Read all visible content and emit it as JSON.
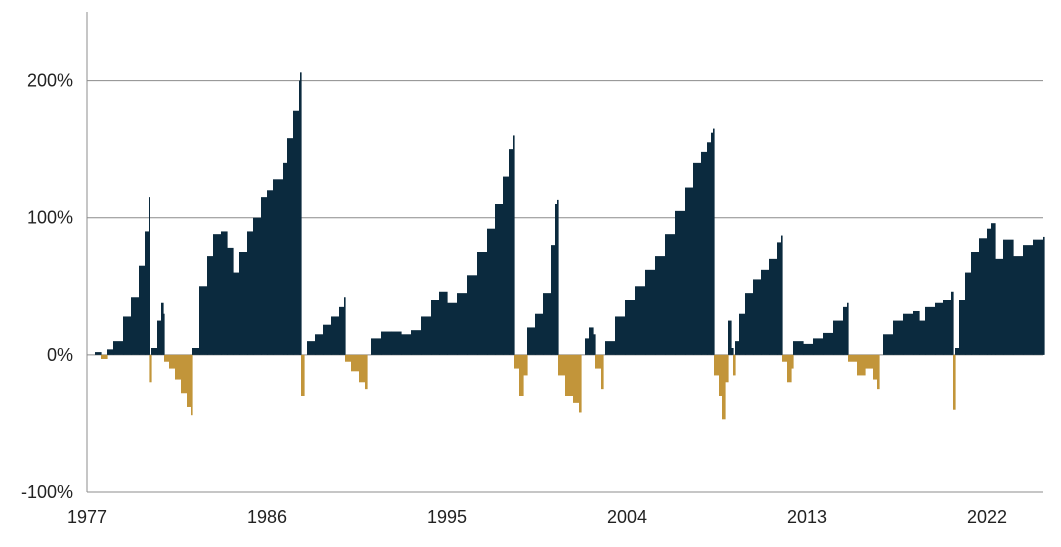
{
  "chart_data": {
    "type": "area",
    "title": "",
    "xlabel": "",
    "ylabel": "",
    "xlim": [
      1977,
      2024.8
    ],
    "ylim": [
      -100,
      250
    ],
    "y_ticks": [
      {
        "value": 200,
        "label": "200%"
      },
      {
        "value": 100,
        "label": "100%"
      },
      {
        "value": 0,
        "label": "0%"
      },
      {
        "value": -100,
        "label": "-100%"
      }
    ],
    "x_ticks": [
      {
        "value": 1977,
        "label": "1977"
      },
      {
        "value": 1986,
        "label": "1986"
      },
      {
        "value": 1995,
        "label": "1995"
      },
      {
        "value": 2004,
        "label": "2004"
      },
      {
        "value": 2013,
        "label": "2013"
      },
      {
        "value": 2022,
        "label": "2022"
      }
    ],
    "grid": true,
    "colors": {
      "positive": "#0b2a3e",
      "negative": "#c2953a",
      "grid": "#8c8c8c"
    },
    "series": [
      {
        "points": [
          [
            1977.0,
            0
          ],
          [
            1977.4,
            2
          ],
          [
            1977.7,
            -3
          ],
          [
            1978.0,
            4
          ],
          [
            1978.3,
            10
          ],
          [
            1978.8,
            28
          ],
          [
            1979.2,
            42
          ],
          [
            1979.6,
            65
          ],
          [
            1979.9,
            90
          ],
          [
            1980.1,
            115
          ],
          [
            1980.12,
            -20
          ],
          [
            1980.2,
            5
          ],
          [
            1980.5,
            25
          ],
          [
            1980.7,
            38
          ],
          [
            1980.8,
            30
          ],
          [
            1980.85,
            -5
          ],
          [
            1981.1,
            -10
          ],
          [
            1981.4,
            -18
          ],
          [
            1981.7,
            -28
          ],
          [
            1982.0,
            -38
          ],
          [
            1982.2,
            -44
          ],
          [
            1982.25,
            5
          ],
          [
            1982.6,
            50
          ],
          [
            1983.0,
            72
          ],
          [
            1983.3,
            88
          ],
          [
            1983.7,
            90
          ],
          [
            1984.0,
            78
          ],
          [
            1984.3,
            60
          ],
          [
            1984.6,
            75
          ],
          [
            1985.0,
            90
          ],
          [
            1985.3,
            100
          ],
          [
            1985.7,
            115
          ],
          [
            1986.0,
            120
          ],
          [
            1986.3,
            128
          ],
          [
            1986.8,
            140
          ],
          [
            1987.0,
            158
          ],
          [
            1987.3,
            178
          ],
          [
            1987.6,
            200
          ],
          [
            1987.65,
            206
          ],
          [
            1987.7,
            -30
          ],
          [
            1987.85,
            0
          ],
          [
            1988.0,
            10
          ],
          [
            1988.4,
            15
          ],
          [
            1988.8,
            22
          ],
          [
            1989.2,
            28
          ],
          [
            1989.6,
            35
          ],
          [
            1989.85,
            42
          ],
          [
            1989.9,
            -5
          ],
          [
            1990.2,
            -12
          ],
          [
            1990.6,
            -20
          ],
          [
            1990.9,
            -25
          ],
          [
            1991.0,
            0
          ],
          [
            1991.2,
            12
          ],
          [
            1991.7,
            17
          ],
          [
            1992.2,
            17
          ],
          [
            1992.7,
            15
          ],
          [
            1993.2,
            18
          ],
          [
            1993.7,
            28
          ],
          [
            1994.2,
            40
          ],
          [
            1994.6,
            46
          ],
          [
            1995.0,
            38
          ],
          [
            1995.5,
            45
          ],
          [
            1996.0,
            58
          ],
          [
            1996.5,
            75
          ],
          [
            1997.0,
            92
          ],
          [
            1997.4,
            110
          ],
          [
            1997.8,
            130
          ],
          [
            1998.1,
            150
          ],
          [
            1998.3,
            160
          ],
          [
            1998.35,
            -10
          ],
          [
            1998.6,
            -30
          ],
          [
            1998.8,
            -15
          ],
          [
            1999.0,
            20
          ],
          [
            1999.4,
            30
          ],
          [
            1999.8,
            45
          ],
          [
            2000.2,
            80
          ],
          [
            2000.4,
            110
          ],
          [
            2000.5,
            113
          ],
          [
            2000.55,
            -15
          ],
          [
            2000.9,
            -30
          ],
          [
            2001.3,
            -35
          ],
          [
            2001.6,
            -42
          ],
          [
            2001.7,
            0
          ],
          [
            2001.9,
            12
          ],
          [
            2002.1,
            20
          ],
          [
            2002.3,
            15
          ],
          [
            2002.4,
            -10
          ],
          [
            2002.7,
            -25
          ],
          [
            2002.8,
            0
          ],
          [
            2002.9,
            10
          ],
          [
            2003.4,
            28
          ],
          [
            2003.9,
            40
          ],
          [
            2004.4,
            50
          ],
          [
            2004.9,
            62
          ],
          [
            2005.4,
            72
          ],
          [
            2005.9,
            88
          ],
          [
            2006.4,
            105
          ],
          [
            2006.9,
            122
          ],
          [
            2007.3,
            140
          ],
          [
            2007.7,
            148
          ],
          [
            2008.0,
            155
          ],
          [
            2008.2,
            162
          ],
          [
            2008.3,
            165
          ],
          [
            2008.35,
            -15
          ],
          [
            2008.6,
            -30
          ],
          [
            2008.75,
            -47
          ],
          [
            2008.9,
            -20
          ],
          [
            2009.05,
            25
          ],
          [
            2009.2,
            5
          ],
          [
            2009.3,
            -15
          ],
          [
            2009.4,
            10
          ],
          [
            2009.6,
            30
          ],
          [
            2009.9,
            45
          ],
          [
            2010.3,
            55
          ],
          [
            2010.7,
            62
          ],
          [
            2011.1,
            70
          ],
          [
            2011.5,
            82
          ],
          [
            2011.7,
            87
          ],
          [
            2011.75,
            -5
          ],
          [
            2012.0,
            -20
          ],
          [
            2012.2,
            -10
          ],
          [
            2012.3,
            10
          ],
          [
            2012.8,
            8
          ],
          [
            2013.3,
            12
          ],
          [
            2013.8,
            16
          ],
          [
            2014.3,
            25
          ],
          [
            2014.8,
            35
          ],
          [
            2015.0,
            38
          ],
          [
            2015.05,
            -5
          ],
          [
            2015.5,
            -15
          ],
          [
            2015.9,
            -10
          ],
          [
            2016.3,
            -18
          ],
          [
            2016.5,
            -25
          ],
          [
            2016.6,
            0
          ],
          [
            2016.8,
            15
          ],
          [
            2017.3,
            25
          ],
          [
            2017.8,
            30
          ],
          [
            2018.3,
            32
          ],
          [
            2018.6,
            25
          ],
          [
            2018.9,
            35
          ],
          [
            2019.4,
            38
          ],
          [
            2019.8,
            40
          ],
          [
            2020.2,
            46
          ],
          [
            2020.3,
            -40
          ],
          [
            2020.4,
            5
          ],
          [
            2020.6,
            40
          ],
          [
            2020.9,
            60
          ],
          [
            2021.2,
            75
          ],
          [
            2021.6,
            85
          ],
          [
            2022.0,
            92
          ],
          [
            2022.2,
            96
          ],
          [
            2022.4,
            70
          ],
          [
            2022.8,
            84
          ],
          [
            2023.3,
            72
          ],
          [
            2023.8,
            80
          ],
          [
            2024.3,
            84
          ],
          [
            2024.8,
            86
          ]
        ]
      }
    ]
  }
}
